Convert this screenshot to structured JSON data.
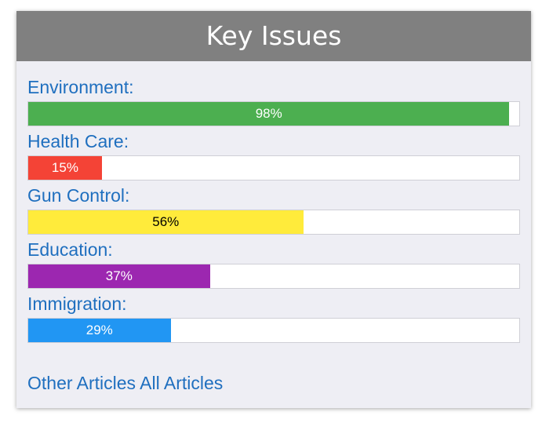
{
  "panel": {
    "title": "Key Issues"
  },
  "issues": [
    {
      "label": "Environment:",
      "percent": 98,
      "percent_label": "98%",
      "color": "#4caf50",
      "text_color": "#ffffff"
    },
    {
      "label": "Health Care:",
      "percent": 15,
      "percent_label": "15%",
      "color": "#f44336",
      "text_color": "#ffffff"
    },
    {
      "label": "Gun Control:",
      "percent": 56,
      "percent_label": "56%",
      "color": "#ffeb3b",
      "text_color": "#000000"
    },
    {
      "label": "Education:",
      "percent": 37,
      "percent_label": "37%",
      "color": "#9c27b0",
      "text_color": "#ffffff"
    },
    {
      "label": "Immigration:",
      "percent": 29,
      "percent_label": "29%",
      "color": "#2196f3",
      "text_color": "#ffffff"
    }
  ],
  "links": {
    "other_articles": "Other Articles",
    "all_articles": "All Articles"
  },
  "colors": {
    "header_bg": "#808080",
    "panel_bg": "#eeeef4",
    "link": "#1f6fbf"
  }
}
